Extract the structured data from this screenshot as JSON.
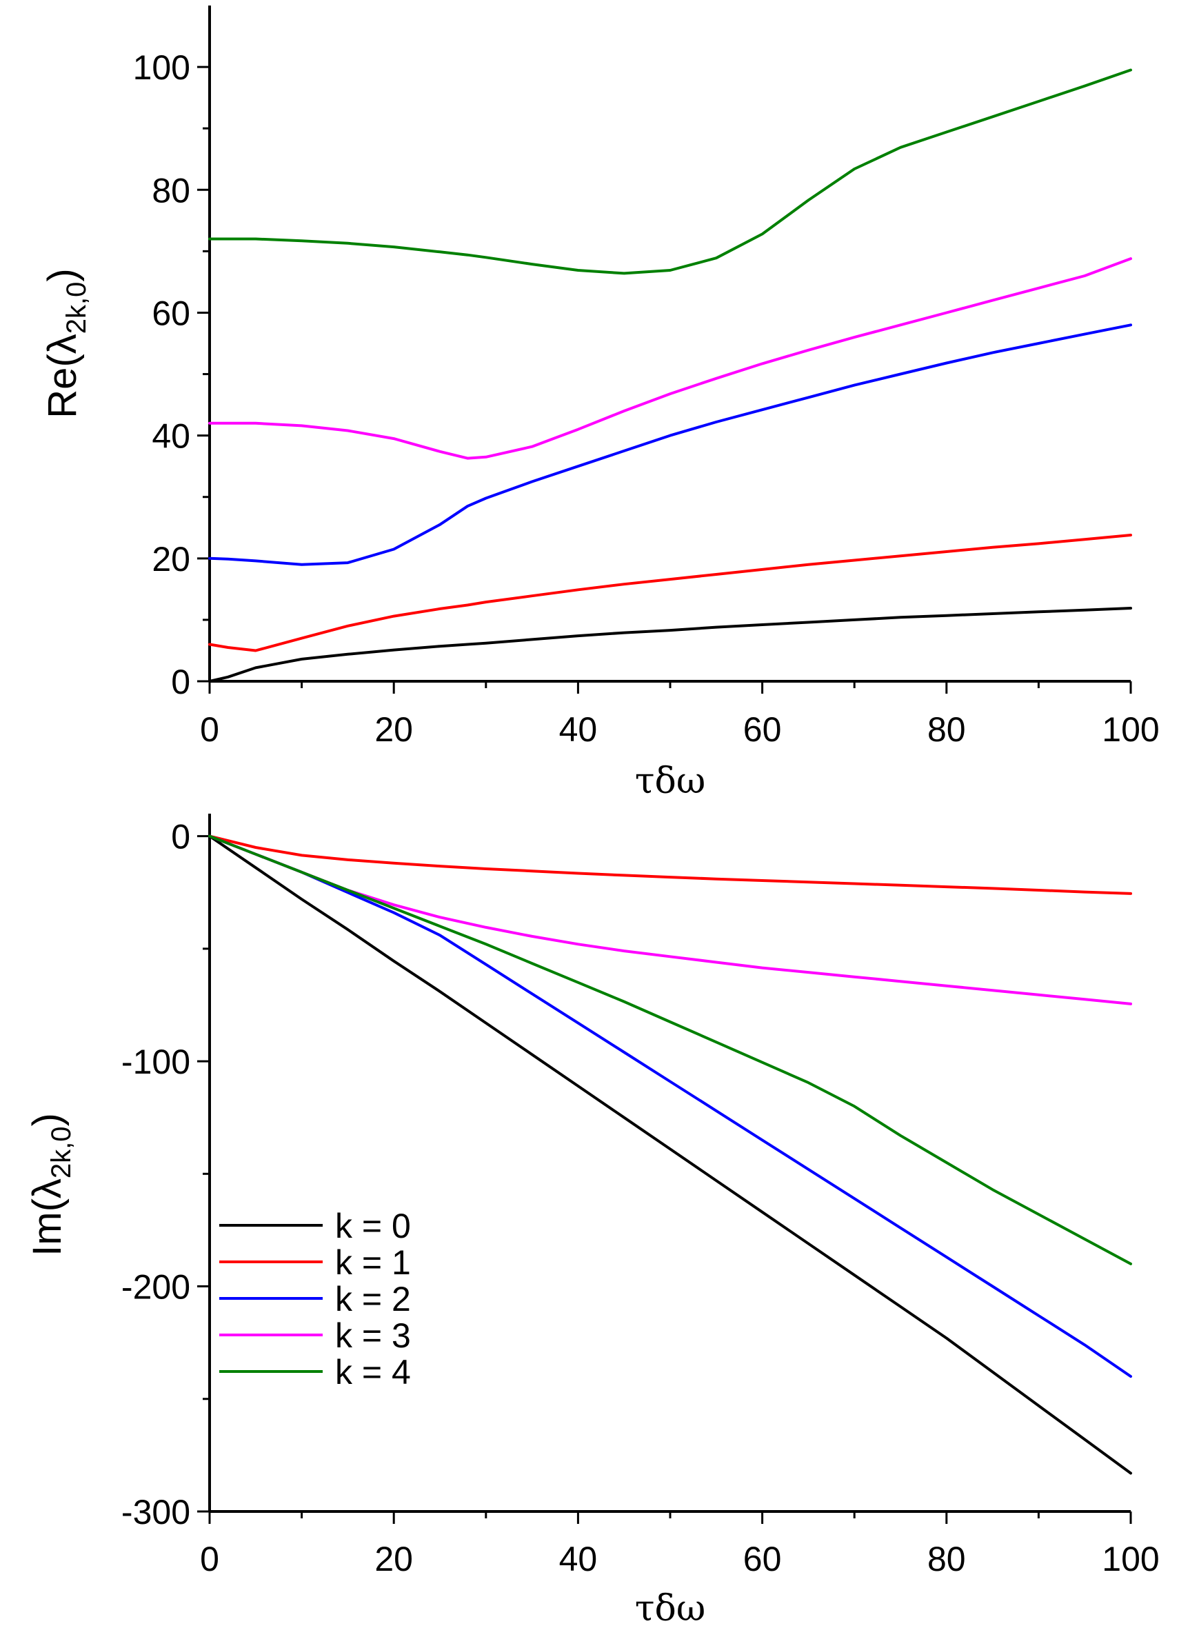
{
  "chart_data": [
    {
      "type": "line",
      "xlabel": "τδω",
      "ylabel_main": "Re(λ",
      "ylabel_sub": "2k,0",
      "ylabel_close": ")",
      "xlim": [
        0,
        100
      ],
      "ylim": [
        0,
        110
      ],
      "xticks": [
        0,
        20,
        40,
        60,
        80,
        100
      ],
      "xtick_labels": [
        "0",
        "20",
        "40",
        "60",
        "80",
        "100"
      ],
      "yticks": [
        0,
        20,
        40,
        60,
        80,
        100
      ],
      "ytick_labels": [
        "0",
        "20",
        "40",
        "60",
        "80",
        "100"
      ],
      "x": [
        0,
        2,
        5,
        10,
        15,
        20,
        25,
        28,
        30,
        35,
        40,
        45,
        50,
        55,
        60,
        65,
        70,
        75,
        80,
        85,
        90,
        95,
        100
      ],
      "series": [
        {
          "name": "k = 0",
          "color": "#000000",
          "values": [
            0,
            0.7,
            2.2,
            3.6,
            4.4,
            5.1,
            5.7,
            6.0,
            6.2,
            6.8,
            7.4,
            7.9,
            8.3,
            8.8,
            9.2,
            9.6,
            10.0,
            10.4,
            10.7,
            11.0,
            11.3,
            11.6,
            11.9
          ]
        },
        {
          "name": "k = 1",
          "color": "#ff0000",
          "values": [
            6.0,
            5.5,
            5.0,
            7.0,
            9.0,
            10.6,
            11.8,
            12.4,
            12.9,
            13.9,
            14.9,
            15.8,
            16.6,
            17.4,
            18.2,
            19.0,
            19.7,
            20.4,
            21.1,
            21.8,
            22.4,
            23.1,
            23.8
          ]
        },
        {
          "name": "k = 2",
          "color": "#0000ff",
          "values": [
            20.0,
            19.9,
            19.6,
            19.0,
            19.3,
            21.5,
            25.5,
            28.5,
            29.8,
            32.5,
            35.0,
            37.5,
            40.0,
            42.2,
            44.2,
            46.2,
            48.2,
            50.0,
            51.8,
            53.5,
            55.0,
            56.5,
            58.0
          ]
        },
        {
          "name": "k = 3",
          "color": "#ff00ff",
          "values": [
            42.0,
            42.0,
            42.0,
            41.6,
            40.8,
            39.5,
            37.4,
            36.3,
            36.5,
            38.2,
            41.0,
            44.0,
            46.8,
            49.3,
            51.7,
            53.9,
            56.0,
            58.0,
            60.0,
            62.0,
            64.0,
            66.0,
            68.8
          ]
        },
        {
          "name": "k = 4",
          "color": "#008000",
          "values": [
            72.0,
            72.0,
            72.0,
            71.7,
            71.3,
            70.7,
            69.9,
            69.4,
            69.0,
            67.9,
            66.9,
            66.4,
            66.9,
            68.9,
            72.8,
            78.3,
            83.4,
            86.9,
            89.4,
            91.9,
            94.4,
            96.9,
            99.5
          ]
        }
      ]
    },
    {
      "type": "line",
      "xlabel": "τδω",
      "ylabel_main": "Im(λ",
      "ylabel_sub": "2k,0",
      "ylabel_close": ")",
      "xlim": [
        0,
        100
      ],
      "ylim": [
        -300,
        10
      ],
      "xticks": [
        0,
        20,
        40,
        60,
        80,
        100
      ],
      "xtick_labels": [
        "0",
        "20",
        "40",
        "60",
        "80",
        "100"
      ],
      "yticks": [
        0,
        -100,
        -200,
        -300
      ],
      "ytick_labels": [
        "0",
        "-100",
        "-200",
        "-300"
      ],
      "legend_position": "bottom-left",
      "x": [
        0,
        5,
        10,
        15,
        20,
        25,
        30,
        35,
        40,
        45,
        50,
        55,
        60,
        65,
        70,
        75,
        80,
        85,
        90,
        95,
        100
      ],
      "series": [
        {
          "name": "k = 0",
          "color": "#000000",
          "values": [
            0,
            -14,
            -28,
            -41.5,
            -55.5,
            -69,
            -83,
            -97,
            -111,
            -125,
            -139,
            -153,
            -167,
            -181,
            -195,
            -209,
            -223,
            -238,
            -253,
            -268,
            -283
          ]
        },
        {
          "name": "k = 1",
          "color": "#ff0000",
          "values": [
            0,
            -5,
            -8.5,
            -10.5,
            -12,
            -13.3,
            -14.5,
            -15.5,
            -16.5,
            -17.4,
            -18.2,
            -19,
            -19.7,
            -20.4,
            -21.1,
            -21.8,
            -22.5,
            -23.2,
            -24,
            -24.8,
            -25.5
          ]
        },
        {
          "name": "k = 2",
          "color": "#0000ff",
          "values": [
            0,
            -8,
            -16,
            -25,
            -34,
            -44,
            -57,
            -70,
            -83,
            -96,
            -109,
            -122,
            -135,
            -148,
            -161,
            -174,
            -187,
            -200,
            -213,
            -226,
            -240
          ]
        },
        {
          "name": "k = 3",
          "color": "#ff00ff",
          "values": [
            0,
            -8,
            -16,
            -24,
            -30.5,
            -36,
            -40.5,
            -44.5,
            -48,
            -51,
            -53.5,
            -56,
            -58.5,
            -60.5,
            -62.5,
            -64.5,
            -66.5,
            -68.5,
            -70.5,
            -72.5,
            -74.5
          ]
        },
        {
          "name": "k = 4",
          "color": "#008000",
          "values": [
            0,
            -8,
            -16,
            -24,
            -32,
            -40,
            -48,
            -56.5,
            -65,
            -73.5,
            -82.5,
            -91.5,
            -100.5,
            -109.5,
            -120,
            -133,
            -145,
            -157,
            -168,
            -179,
            -190
          ]
        }
      ]
    }
  ]
}
